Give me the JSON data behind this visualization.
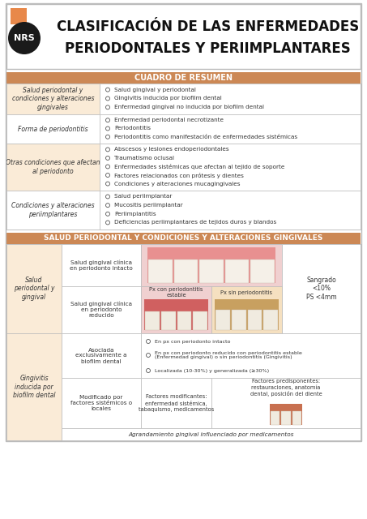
{
  "title_line1": "CLASIFICACIÓN DE LAS ENFERMEDADES",
  "title_line2": "PERIODONTALES Y PERIIMPLANTARES",
  "nrs_label": "NRS",
  "orange_color": "#E8884A",
  "light_orange_bg": "#FAEBD7",
  "dark_orange_header": "#CC8855",
  "section1_header": "CUADRO DE RESUMEN",
  "section2_header": "SALUD PERIODONTAL Y CONDICIONES Y ALTERACIONES GINGIVALES",
  "table1_rows": [
    {
      "left": "Salud periodontal y\ncondiciones y alteraciones\ngingivales",
      "right": [
        "Salud gingival y periodontal",
        "Gingivitis inducida por biofilm dental",
        "Enfermedad gingival no inducida por biofilm dental"
      ]
    },
    {
      "left": "Forma de periodontitis",
      "right": [
        "Enfermedad periodontal necrotizante",
        "Periodontitis",
        "Periodontitis como manifestación de enfermedades sistémicas"
      ]
    },
    {
      "left": "Otras condiciones que afectan\nal periodonto",
      "right": [
        "Abscesos y lesiones endoperiodontales",
        "Traumatismo oclusal",
        "Enfermedades sistémicas que afectan al tejido de soporte",
        "Factores relacionados con prótesis y dientes",
        "Condiciones y alteraciones mucagingivales"
      ]
    },
    {
      "left": "Condiciones y alteraciones\nperiimplantares",
      "right": [
        "Salud periimplantar",
        "Mucositis periimplantar",
        "Periimplantitis",
        "Deficiencias periimplantares de tejidos duros y blandos"
      ]
    }
  ],
  "background_color": "#FFFFFF",
  "border_color": "#BBBBBB",
  "text_dark": "#333333",
  "bullet_color": "#555555",
  "image_pink": "#E8A0A0",
  "image_pink2": "#D07070",
  "image_yellow": "#D4A870",
  "image_peach": "#CC8866"
}
